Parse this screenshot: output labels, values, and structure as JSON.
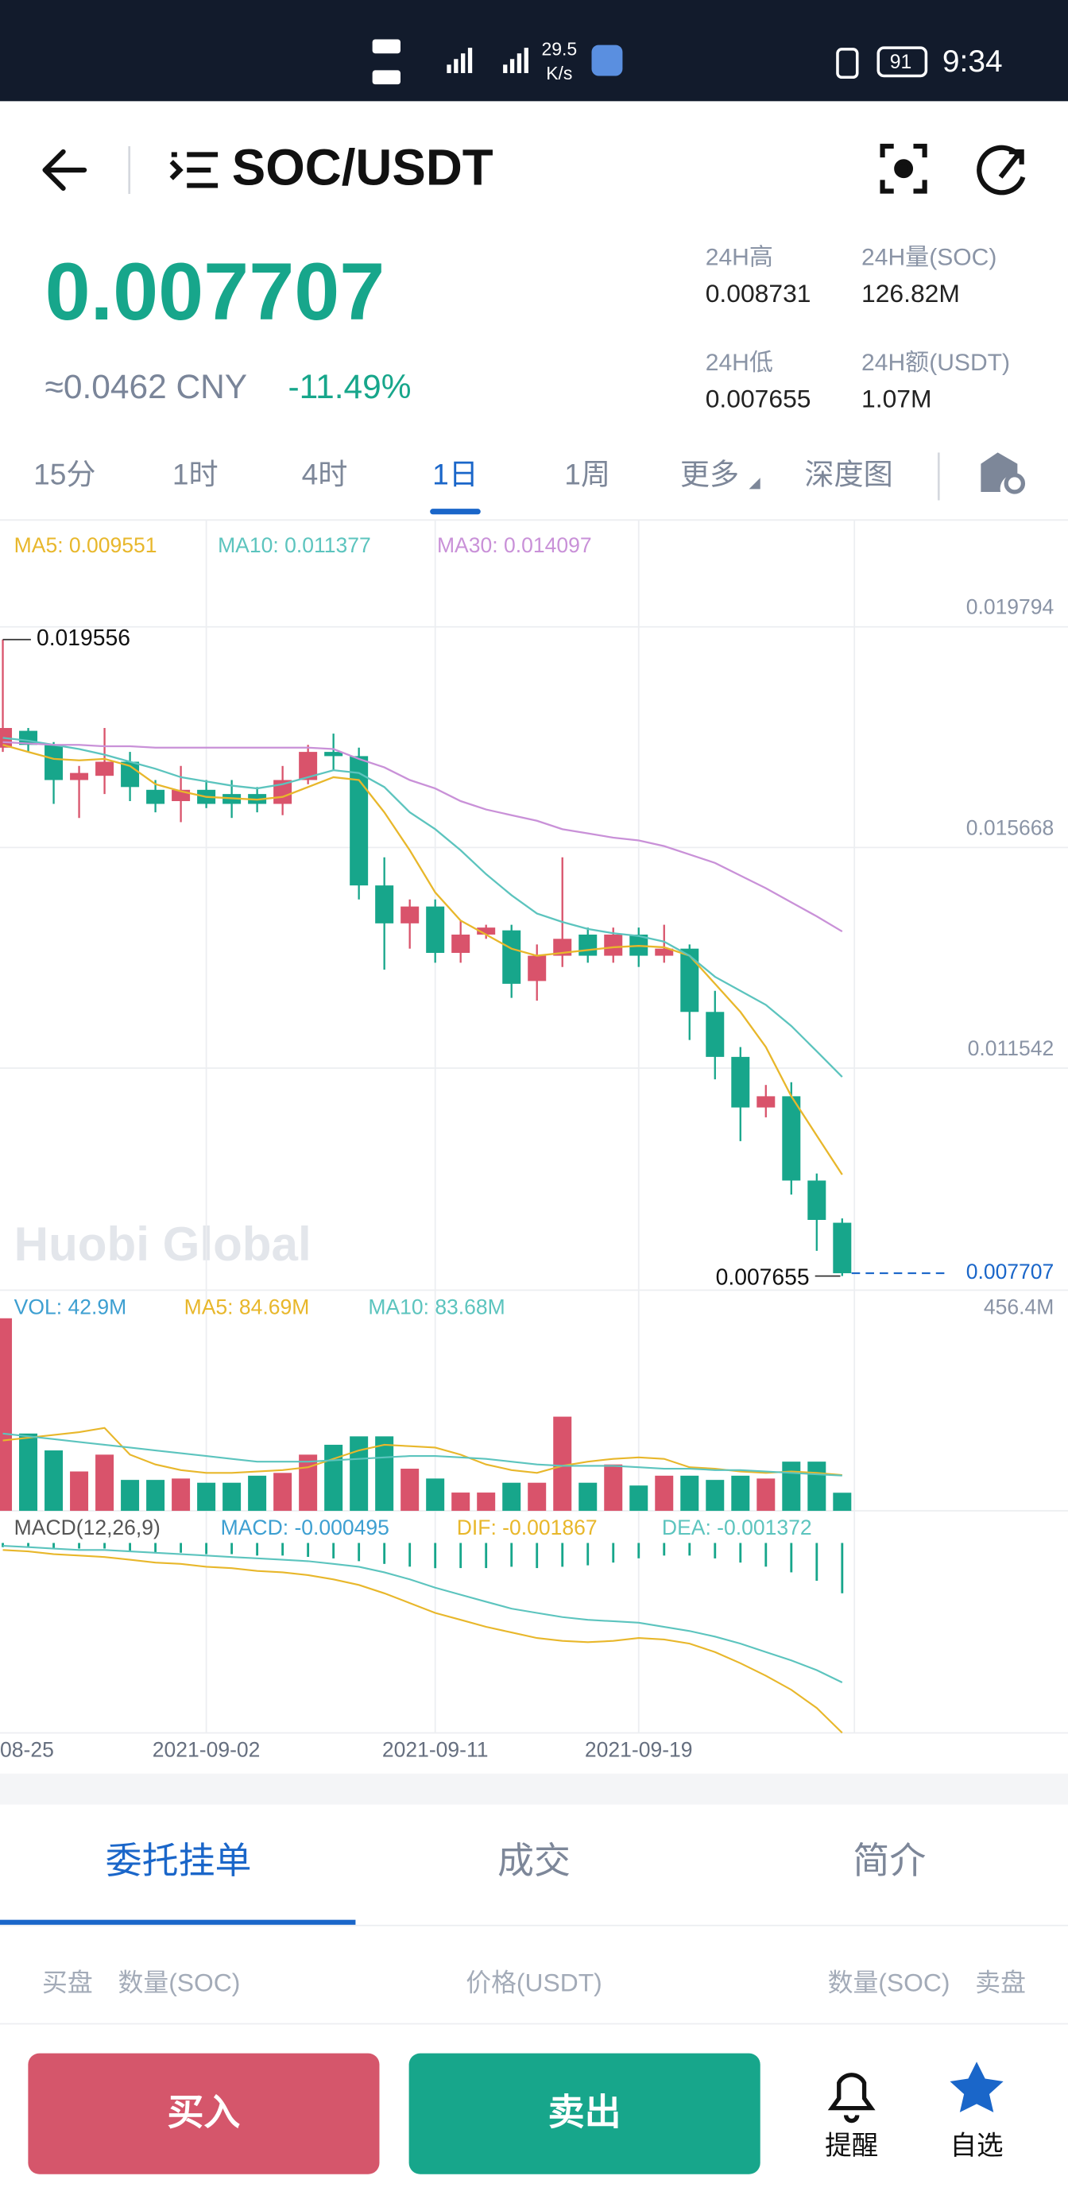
{
  "status_bar": {
    "speed": "29.5",
    "speed_unit": "K/s",
    "battery": "91",
    "time": "9:34"
  },
  "header": {
    "pair": "SOC/USDT"
  },
  "ticker": {
    "price": "0.007707",
    "cny": "≈0.0462 CNY",
    "change": "-11.49%",
    "stats": [
      {
        "label": "24H高",
        "value": "0.008731"
      },
      {
        "label": "24H量(SOC)",
        "value": "126.82M"
      },
      {
        "label": "24H低",
        "value": "0.007655"
      },
      {
        "label": "24H额(USDT)",
        "value": "1.07M"
      }
    ]
  },
  "intervals": {
    "items": [
      "15分",
      "1时",
      "4时",
      "1日",
      "1周",
      "更多",
      "深度图"
    ],
    "active": 3
  },
  "chart_data": {
    "type": "candlestick",
    "categories": [
      "08-25",
      null,
      null,
      null,
      null,
      null,
      null,
      null,
      "2021-09-02",
      null,
      null,
      null,
      null,
      null,
      null,
      null,
      null,
      "2021-09-11",
      null,
      null,
      null,
      null,
      null,
      null,
      null,
      "2021-09-19",
      null,
      null,
      null,
      null,
      null,
      null,
      null,
      null
    ],
    "open": [
      0.017534,
      0.017849,
      0.017586,
      0.016929,
      0.017008,
      0.017271,
      0.016746,
      0.016535,
      0.016746,
      0.016667,
      0.016667,
      0.016483,
      0.016929,
      0.017455,
      0.017376,
      0.014958,
      0.014249,
      0.014564,
      0.013697,
      0.014039,
      0.014118,
      0.013171,
      0.013644,
      0.014039,
      0.013644,
      0.014039,
      0.013644,
      0.013776,
      0.012593,
      0.011752,
      0.010806,
      0.011016,
      0.00944,
      0.008651
    ],
    "close": [
      0.017902,
      0.017586,
      0.016929,
      0.017061,
      0.017271,
      0.016798,
      0.016483,
      0.016746,
      0.016483,
      0.016483,
      0.016483,
      0.016929,
      0.017455,
      0.017376,
      0.014958,
      0.014249,
      0.014564,
      0.013697,
      0.014039,
      0.01417,
      0.013119,
      0.013644,
      0.01396,
      0.013644,
      0.014039,
      0.013644,
      0.013776,
      0.012593,
      0.011752,
      0.010806,
      0.011016,
      0.00944,
      0.008704,
      0.007707
    ],
    "high": [
      0.019556,
      0.017902,
      0.017639,
      0.017192,
      0.017902,
      0.017455,
      0.016929,
      0.017192,
      0.016929,
      0.016929,
      0.016798,
      0.017192,
      0.017586,
      0.017797,
      0.017534,
      0.015484,
      0.014696,
      0.014696,
      0.014301,
      0.014223,
      0.014223,
      0.013855,
      0.015484,
      0.01417,
      0.01417,
      0.01417,
      0.014223,
      0.013855,
      0.012987,
      0.011936,
      0.011227,
      0.011279,
      0.009571,
      0.008731
    ],
    "low": [
      0.017455,
      0.017455,
      0.016483,
      0.01622,
      0.016667,
      0.016535,
      0.016325,
      0.016141,
      0.016404,
      0.01622,
      0.016325,
      0.016272,
      0.016851,
      0.017113,
      0.014696,
      0.013382,
      0.013776,
      0.013513,
      0.013513,
      0.01396,
      0.012856,
      0.012804,
      0.013434,
      0.013513,
      0.013513,
      0.013434,
      0.013513,
      0.012068,
      0.011332,
      0.010176,
      0.010622,
      0.009177,
      0.008126,
      0.007655
    ],
    "up_color": "#d9536b",
    "down_color": "#17a68b",
    "lines": [
      {
        "name": "MA5: 0.009551",
        "color": "#e8b72b",
        "values": [
          0.017586,
          0.017455,
          0.017324,
          0.017297,
          0.017324,
          0.017192,
          0.016851,
          0.016719,
          0.016614,
          0.016588,
          0.016562,
          0.016614,
          0.016798,
          0.016982,
          0.016929,
          0.016325,
          0.015615,
          0.014827,
          0.014301,
          0.014039,
          0.013776,
          0.013644,
          0.013697,
          0.01375,
          0.013802,
          0.013828,
          0.013802,
          0.013644,
          0.013119,
          0.012593,
          0.011936,
          0.011016,
          0.010281,
          0.009551
        ]
      },
      {
        "name": "MA10: 0.011377",
        "color": "#5cc4be",
        "values": [
          0.017718,
          0.017665,
          0.017586,
          0.017508,
          0.017403,
          0.017271,
          0.01714,
          0.016982,
          0.016903,
          0.016824,
          0.016772,
          0.016851,
          0.016982,
          0.017113,
          0.017061,
          0.016798,
          0.016325,
          0.01601,
          0.015615,
          0.015169,
          0.014775,
          0.014433,
          0.014275,
          0.014144,
          0.014065,
          0.014012,
          0.013907,
          0.013644,
          0.01325,
          0.012987,
          0.012725,
          0.01233,
          0.011857,
          0.011377
        ]
      },
      {
        "name": "MA30: 0.014097",
        "color": "#c991d8",
        "values": [
          0.017639,
          0.017613,
          0.017586,
          0.017586,
          0.01756,
          0.01756,
          0.017534,
          0.017534,
          0.017534,
          0.017534,
          0.017534,
          0.017534,
          0.017534,
          0.017508,
          0.017324,
          0.017166,
          0.016929,
          0.016772,
          0.016535,
          0.016378,
          0.016272,
          0.016167,
          0.01601,
          0.015931,
          0.015852,
          0.015799,
          0.015694,
          0.015537,
          0.015379,
          0.015142,
          0.014906,
          0.014643,
          0.01438,
          0.014097
        ]
      }
    ],
    "ylim": [
      0.00739,
      0.021791
    ],
    "yticks": [
      0.019794,
      0.015668,
      0.011542
    ],
    "grid": true,
    "max_marker": 0.019556,
    "min_marker": 0.007655,
    "last_price": 0.007707,
    "last_price_color": "#1a66c9",
    "volume": {
      "label": "VOL: 42.9M",
      "label_color": "#3d9fd1",
      "max_label": "456.4M",
      "ylim": [
        0,
        523
      ],
      "values": [
        456.4,
        183.2,
        143.2,
        93.3,
        133.2,
        73.3,
        73.3,
        76.6,
        66.6,
        66.6,
        83.3,
        89.9,
        133.2,
        156.6,
        176.5,
        176.5,
        99.9,
        76.6,
        43.3,
        43.3,
        66.6,
        66.6,
        223.2,
        66.6,
        109.9,
        60,
        83.3,
        83.3,
        73.3,
        83.3,
        76.6,
        116.6,
        116.6,
        42.9
      ],
      "lines": [
        {
          "name": "MA5: 84.69M",
          "color": "#e8b72b",
          "values": [
            166.6,
            173.2,
            179.9,
            186.5,
            196.5,
            133.2,
            109.9,
            96.6,
            89.9,
            89.9,
            93.3,
            96.6,
            103.3,
            123.2,
            143.2,
            156.6,
            153.2,
            149.9,
            133.2,
            109.9,
            96.6,
            89.9,
            106.6,
            116.6,
            123.2,
            126.6,
            123.2,
            103.3,
            99.9,
            93.3,
            89.9,
            93.3,
            89.9,
            84.69
          ]
        },
        {
          "name": "MA10: 83.68M",
          "color": "#5cc4be",
          "values": [
            183.2,
            176.5,
            169.9,
            163.2,
            156.6,
            149.9,
            143.2,
            136.6,
            129.9,
            123.2,
            116.6,
            116.6,
            116.6,
            119.9,
            123.2,
            126.6,
            129.9,
            129.9,
            126.6,
            123.2,
            116.6,
            109.9,
            106.6,
            106.6,
            106.6,
            103.3,
            99.9,
            99.9,
            96.6,
            96.6,
            93.3,
            89.9,
            86.6,
            83.68
          ]
        }
      ]
    },
    "macd": {
      "label": "MACD(12,26,9)",
      "ylim": [
        -0.001868,
        0.000316
      ],
      "histogram": {
        "name": "MACD: -0.000495",
        "color": "#3d9fd1",
        "bar_color": "#17a68b",
        "values": [
          -4.1e-05,
          -4.2e-05,
          -5.5e-05,
          -5.5e-05,
          -5.5e-05,
          -8.2e-05,
          -9.7e-05,
          -9.6e-05,
          -0.00011,
          -0.00011,
          -0.000124,
          -0.000124,
          -0.000137,
          -0.000152,
          -0.000179,
          -0.000206,
          -0.000233,
          -0.000248,
          -0.000247,
          -0.000247,
          -0.000234,
          -0.000247,
          -0.000234,
          -0.00022,
          -0.000193,
          -0.000151,
          -0.000124,
          -0.000124,
          -0.000152,
          -0.000193,
          -0.000233,
          -0.000289,
          -0.000372,
          -0.000495
        ]
      },
      "lines": [
        {
          "name": "DIF: -0.001867",
          "color": "#e8b72b",
          "values": [
            -6.9e-05,
            -8.3e-05,
            -0.00011,
            -0.000124,
            -0.000138,
            -0.000165,
            -0.000193,
            -0.000206,
            -0.000234,
            -0.000248,
            -0.000275,
            -0.000289,
            -0.000316,
            -0.000358,
            -0.000413,
            -0.000495,
            -0.000591,
            -0.000688,
            -0.000756,
            -0.000825,
            -0.00088,
            -0.000935,
            -0.000963,
            -0.000976,
            -0.000963,
            -0.000935,
            -0.000949,
            -0.00099,
            -0.001073,
            -0.001183,
            -0.001306,
            -0.001444,
            -0.001623,
            -0.001867
          ]
        },
        {
          "name": "DEA: -0.001372",
          "color": "#5cc4be",
          "values": [
            -2.8e-05,
            -4.1e-05,
            -5.5e-05,
            -6.9e-05,
            -6.9e-05,
            -8.3e-05,
            -9.6e-05,
            -0.00011,
            -0.000124,
            -0.000138,
            -0.000151,
            -0.000165,
            -0.000179,
            -0.000206,
            -0.000234,
            -0.000289,
            -0.000358,
            -0.00044,
            -0.000509,
            -0.000578,
            -0.000646,
            -0.000688,
            -0.000729,
            -0.000756,
            -0.00077,
            -0.000784,
            -0.000825,
            -0.000866,
            -0.000921,
            -0.00099,
            -0.001073,
            -0.001155,
            -0.001251,
            -0.001372
          ]
        }
      ]
    }
  },
  "watermark": "Huobi Global",
  "order_tabs": {
    "items": [
      "委托挂单",
      "成交",
      "简介"
    ],
    "active": 0
  },
  "book_header": [
    "买盘",
    "数量(SOC)",
    "价格(USDT)",
    "数量(SOC)",
    "卖盘"
  ],
  "actions": {
    "buy": "买入",
    "sell": "卖出",
    "alert": "提醒",
    "favorite": "自选"
  }
}
